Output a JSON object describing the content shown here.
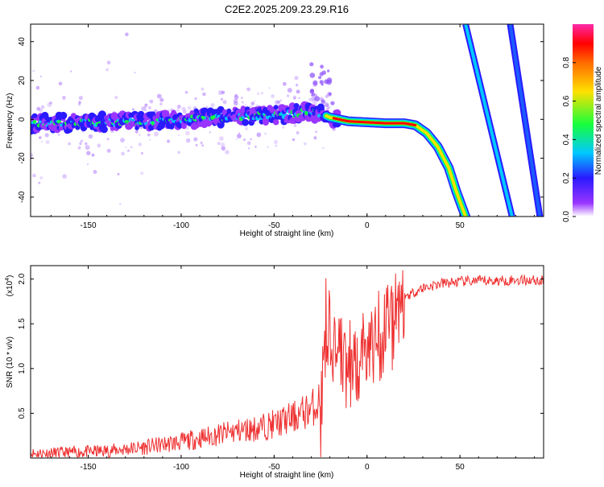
{
  "title": "C2E2.2025.209.23.29.R16",
  "top_panel": {
    "xlabel": "Height of straight line (km)",
    "ylabel": "Frequency (Hz)",
    "colorbar_label": "Normalized spectral amplitude"
  },
  "bottom_panel": {
    "xlabel": "Height of straight line (km)",
    "ylabel": "SNR (10 * v/v)",
    "scale_label": "(x10",
    "scale_exponent": "4",
    "scale_close": ")"
  },
  "chart_data": [
    {
      "type": "heatmap",
      "title": "C2E2.2025.209.23.29.R16",
      "xlabel": "Height of straight line (km)",
      "ylabel": "Frequency (Hz)",
      "xlim": [
        -181,
        95
      ],
      "ylim": [
        -50,
        49
      ],
      "x_ticks": [
        -150,
        -100,
        -50,
        0,
        50
      ],
      "y_ticks": [
        -40,
        -20,
        0,
        20,
        40
      ],
      "colorbar": {
        "label": "Normalized spectral amplitude",
        "range": [
          0,
          1
        ],
        "ticks": [
          "0.0",
          "0.2",
          "0.4",
          "0.6",
          "0.8"
        ],
        "colors": [
          "#ffffff",
          "#9a35ff",
          "#2a1aff",
          "#00c8ff",
          "#18ff3c",
          "#ffe000",
          "#ff6a00",
          "#ff0000",
          "#ff2aa8"
        ]
      },
      "main_track": [
        {
          "x": -181,
          "y": -2
        },
        {
          "x": -150,
          "y": -1.5
        },
        {
          "x": -120,
          "y": -1
        },
        {
          "x": -100,
          "y": 0
        },
        {
          "x": -80,
          "y": 1
        },
        {
          "x": -60,
          "y": 2
        },
        {
          "x": -40,
          "y": 3
        },
        {
          "x": -30,
          "y": 4
        },
        {
          "x": -25,
          "y": 3
        },
        {
          "x": -20,
          "y": 1
        },
        {
          "x": -10,
          "y": -1
        },
        {
          "x": 0,
          "y": -1.5
        },
        {
          "x": 10,
          "y": -2
        },
        {
          "x": 20,
          "y": -2
        },
        {
          "x": 26,
          "y": -3
        },
        {
          "x": 32,
          "y": -7
        },
        {
          "x": 38,
          "y": -14
        },
        {
          "x": 44,
          "y": -25
        },
        {
          "x": 48,
          "y": -37
        },
        {
          "x": 53,
          "y": -50
        }
      ],
      "diagonal_tracks": [
        {
          "points": [
            {
              "x": 53,
              "y": 49
            },
            {
              "x": 78,
              "y": -50
            }
          ]
        },
        {
          "points": [
            {
              "x": 77,
              "y": 49
            },
            {
              "x": 93,
              "y": -50
            }
          ]
        }
      ]
    },
    {
      "type": "line",
      "xlabel": "Height of straight line (km)",
      "ylabel": "SNR (10 * v/v)",
      "xlim": [
        -181,
        95
      ],
      "ylim": [
        0,
        2.15
      ],
      "y_unit_multiplier": "x10^4",
      "x_ticks": [
        -150,
        -100,
        -50,
        0,
        50
      ],
      "y_ticks": [
        "0.5",
        "1.0",
        "1.5",
        "2.0"
      ],
      "color": "#ee3030",
      "x": [
        -181,
        -160,
        -140,
        -120,
        -100,
        -90,
        -80,
        -70,
        -60,
        -50,
        -40,
        -35,
        -30,
        -25,
        -22,
        -20,
        -15,
        -10,
        -5,
        0,
        5,
        10,
        15,
        20,
        25,
        30,
        40,
        50,
        60,
        70,
        80,
        90,
        95
      ],
      "values": [
        0.05,
        0.06,
        0.08,
        0.12,
        0.18,
        0.22,
        0.26,
        0.3,
        0.33,
        0.38,
        0.45,
        0.5,
        0.55,
        0.65,
        1.1,
        1.3,
        1.2,
        1.05,
        1.1,
        1.15,
        1.35,
        1.55,
        1.7,
        1.8,
        1.85,
        1.9,
        1.95,
        1.97,
        1.98,
        1.98,
        1.99,
        1.99,
        1.97
      ]
    }
  ]
}
